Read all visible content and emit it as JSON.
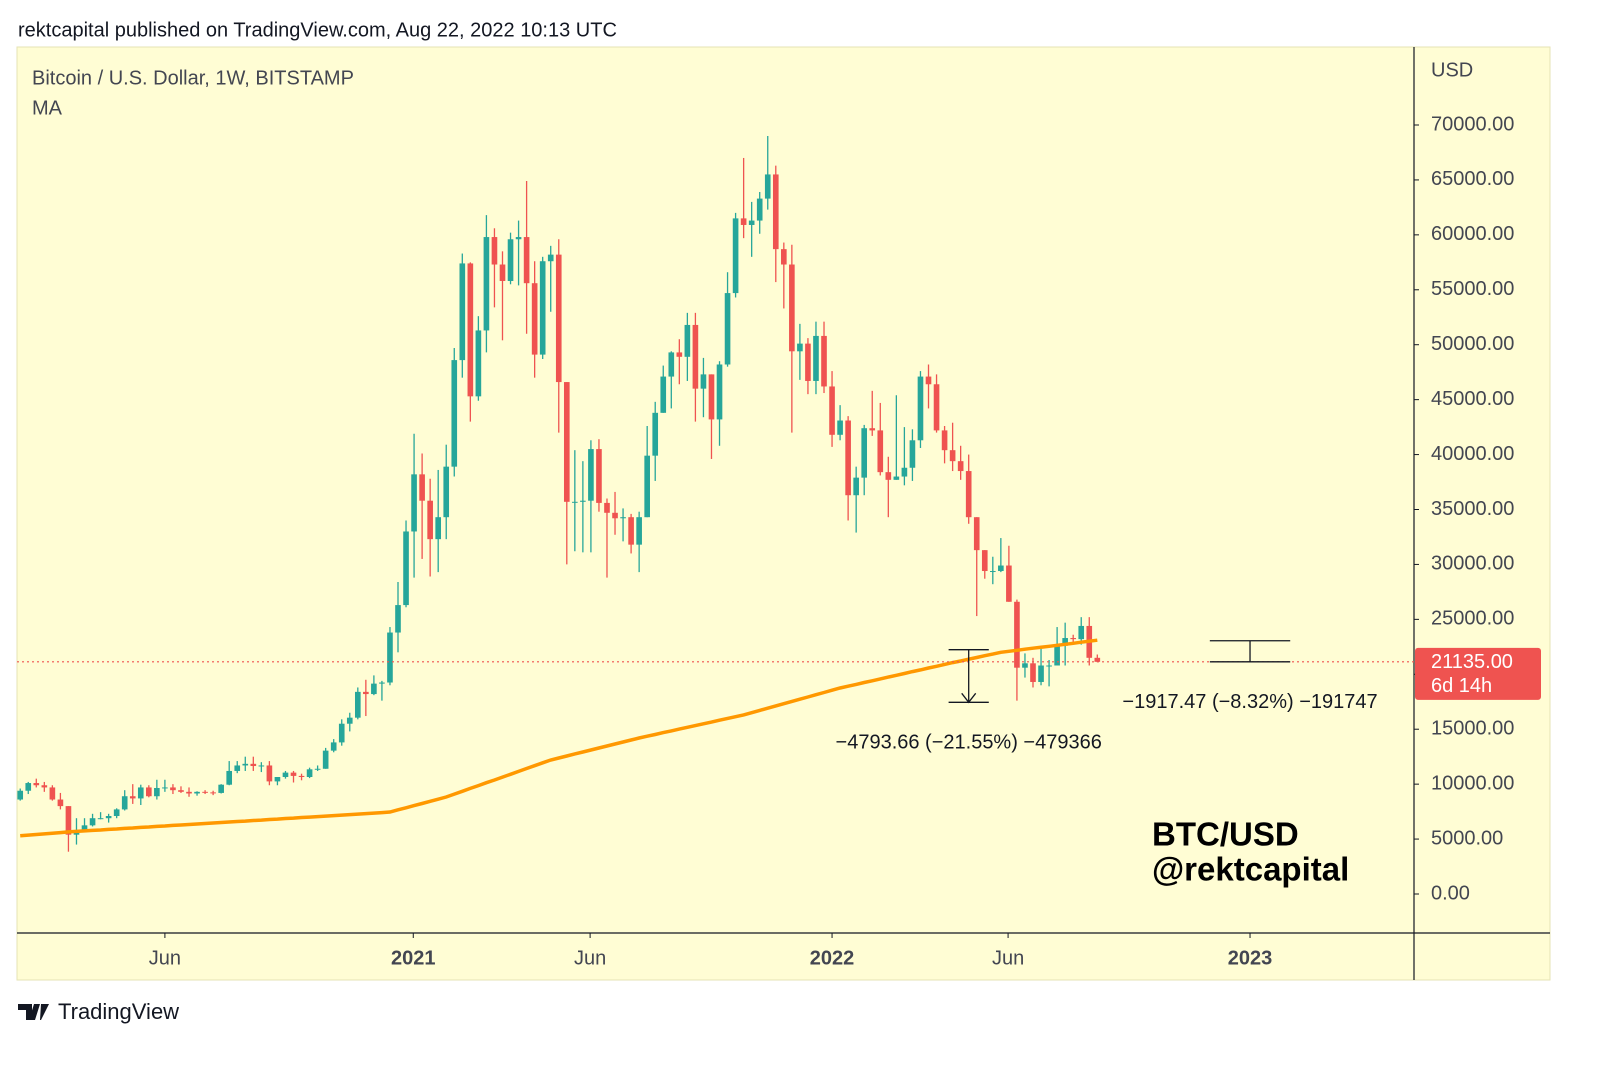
{
  "header": "rektcapital published on TradingView.com, Aug 22, 2022 10:13 UTC",
  "footer": "TradingView",
  "chart_data": {
    "type": "candlestick",
    "title": "Bitcoin / U.S. Dollar, 1W, BITSTAMP",
    "y_axis_label": "USD",
    "watermark": [
      "BTC/USD",
      "@rektcapital"
    ],
    "up_color": "#26a69a",
    "down_color": "#ef5350",
    "open": [
      8600,
      9400,
      10100,
      9900,
      9700,
      8600,
      8000,
      5400,
      5800,
      6250,
      6900,
      6900,
      7100,
      7700,
      8900,
      8700,
      9700,
      8900,
      9650,
      9700,
      9450,
      9300,
      9150,
      9300,
      9250,
      9200,
      9950,
      11200,
      11700,
      11850,
      11650,
      11700,
      10250,
      10650,
      11050,
      10750,
      10650,
      11350,
      11400,
      13050,
      13800,
      15500,
      16050,
      18400,
      18200,
      19150,
      19250,
      23800,
      26300,
      33000,
      38200,
      35800,
      32300,
      34300,
      38900,
      48600,
      57400,
      45300,
      51300,
      59800,
      57300,
      55800,
      59600,
      59800,
      55600,
      49100,
      57600,
      58200,
      46600,
      35700,
      35700,
      35800,
      40500,
      35600,
      34700,
      34200,
      34300,
      31800,
      34300,
      39900,
      43800,
      47100,
      49300,
      48900,
      51800,
      46000,
      47300,
      43200,
      48200,
      54700,
      61500,
      60900,
      61300,
      63300,
      65500,
      58700,
      57300,
      49400,
      50100,
      46700,
      50800,
      46200,
      41800,
      43100,
      36300,
      37900,
      42400,
      42200,
      38400,
      37700,
      38000,
      38800,
      41300,
      47100,
      46400,
      42200,
      40400,
      39400,
      38500,
      34300,
      31300,
      29400,
      29400,
      29900,
      26600,
      20600,
      21000,
      19300,
      20800,
      20800,
      22600,
      23300,
      23200,
      24400,
      21500
    ],
    "high": [
      9600,
      10200,
      10500,
      10200,
      9900,
      9200,
      8000,
      6900,
      6900,
      7300,
      7450,
      7300,
      7800,
      9450,
      10000,
      9950,
      9900,
      10400,
      10400,
      10000,
      9800,
      9700,
      9350,
      9450,
      9400,
      10000,
      12100,
      12100,
      12500,
      12500,
      12000,
      12100,
      10600,
      11200,
      11200,
      10950,
      11500,
      11700,
      13300,
      14100,
      15900,
      16500,
      18800,
      19500,
      19900,
      19400,
      24300,
      28400,
      34000,
      41900,
      40100,
      37800,
      38600,
      40900,
      49700,
      58300,
      57500,
      52600,
      61800,
      60600,
      58500,
      60200,
      61300,
      64900,
      57600,
      58000,
      59000,
      59600,
      46600,
      40400,
      39400,
      41300,
      41400,
      36000,
      36600,
      35100,
      34600,
      34800,
      42600,
      44800,
      48100,
      49400,
      50500,
      52900,
      52900,
      48800,
      47300,
      48500,
      56600,
      62000,
      67000,
      63000,
      63900,
      69000,
      66300,
      59300,
      59100,
      51900,
      50600,
      52100,
      52100,
      47600,
      44500,
      43500,
      38900,
      42700,
      45800,
      44700,
      39800,
      45400,
      42500,
      42300,
      47600,
      48200,
      47300,
      42600,
      42900,
      40800,
      40000,
      34300,
      31300,
      30700,
      32400,
      31700,
      26800,
      21900,
      21500,
      22500,
      21300,
      24300,
      24700,
      23600,
      25200,
      25200,
      21800
    ],
    "low": [
      8500,
      9100,
      9700,
      9300,
      8500,
      7700,
      3850,
      4500,
      5700,
      6150,
      6800,
      6500,
      6900,
      7600,
      8200,
      8100,
      8800,
      8600,
      9300,
      9100,
      9200,
      8850,
      8950,
      9100,
      9000,
      9150,
      9900,
      11000,
      11200,
      11200,
      11100,
      9900,
      9900,
      10500,
      10150,
      10350,
      10550,
      11200,
      11400,
      12900,
      13500,
      14800,
      15900,
      16200,
      18100,
      17600,
      19000,
      22000,
      26100,
      28800,
      30500,
      28900,
      29300,
      32300,
      38000,
      47000,
      43000,
      44900,
      49300,
      53400,
      50400,
      55500,
      55400,
      51000,
      47000,
      48700,
      53000,
      42000,
      30000,
      31200,
      31100,
      31100,
      34800,
      28800,
      32700,
      32100,
      31000,
      29300,
      34300,
      37600,
      43800,
      44200,
      46400,
      46700,
      43000,
      43400,
      39600,
      40800,
      48000,
      54300,
      59700,
      58000,
      60100,
      62300,
      55700,
      53300,
      42000,
      46800,
      45500,
      45500,
      45600,
      40700,
      41300,
      34000,
      32900,
      36300,
      41700,
      38100,
      34300,
      37700,
      37200,
      37600,
      40600,
      44200,
      42000,
      39200,
      38500,
      37700,
      33700,
      25300,
      28700,
      28200,
      29300,
      26600,
      17600,
      19700,
      18800,
      19000,
      18900,
      20800,
      20800,
      22700,
      22700,
      20800,
      21100
    ],
    "close": [
      9400,
      10100,
      9900,
      9700,
      8600,
      8000,
      5400,
      5800,
      6250,
      6900,
      6900,
      7100,
      7700,
      8900,
      8700,
      9700,
      8900,
      9650,
      9700,
      9450,
      9300,
      9150,
      9300,
      9250,
      9200,
      9950,
      11200,
      11700,
      11850,
      11650,
      11700,
      10250,
      10650,
      11050,
      10750,
      10650,
      11350,
      11400,
      13050,
      13800,
      15500,
      16050,
      18400,
      18200,
      19150,
      19250,
      23800,
      26300,
      33000,
      38200,
      35800,
      32300,
      34300,
      38900,
      48600,
      57400,
      45300,
      51300,
      59800,
      57300,
      55800,
      59600,
      59800,
      55600,
      49100,
      57600,
      58200,
      46600,
      35700,
      35700,
      35800,
      40500,
      35600,
      34700,
      34200,
      34300,
      31800,
      34300,
      39900,
      43800,
      47100,
      49300,
      48900,
      51800,
      46000,
      47300,
      43200,
      48200,
      54700,
      61500,
      60900,
      61300,
      63300,
      65500,
      58700,
      57300,
      49400,
      50100,
      46700,
      50800,
      46200,
      41800,
      43100,
      36300,
      37900,
      42400,
      42200,
      38400,
      37700,
      38000,
      38800,
      41300,
      47100,
      46400,
      42200,
      40400,
      39400,
      38500,
      34300,
      31300,
      29400,
      29400,
      29900,
      26600,
      20600,
      21000,
      19300,
      20800,
      20800,
      22600,
      23300,
      23200,
      24400,
      21500,
      21135
    ],
    "ma": {
      "name": "MA",
      "color": "#ff9800",
      "values": [
        5300,
        5360,
        5420,
        5470,
        5530,
        5590,
        5650,
        5700,
        5740,
        5790,
        5830,
        5880,
        5920,
        5970,
        6010,
        6060,
        6100,
        6150,
        6190,
        6240,
        6280,
        6330,
        6370,
        6420,
        6460,
        6510,
        6550,
        6600,
        6640,
        6690,
        6730,
        6780,
        6820,
        6870,
        6910,
        6960,
        7000,
        7050,
        7090,
        7140,
        7180,
        7230,
        7270,
        7320,
        7360,
        7410,
        7460,
        7660,
        7850,
        8050,
        8240,
        8440,
        8630,
        8830,
        9090,
        9350,
        9610,
        9870,
        10130,
        10380,
        10640,
        10900,
        11160,
        11420,
        11680,
        11940,
        12200,
        12380,
        12560,
        12750,
        12930,
        13110,
        13290,
        13470,
        13650,
        13840,
        14020,
        14200,
        14360,
        14520,
        14690,
        14850,
        15010,
        15170,
        15330,
        15490,
        15650,
        15820,
        15980,
        16140,
        16300,
        16500,
        16710,
        16910,
        17120,
        17320,
        17530,
        17730,
        17930,
        18140,
        18340,
        18550,
        18750,
        18920,
        19080,
        19250,
        19410,
        19580,
        19740,
        19910,
        20070,
        20240,
        20400,
        20570,
        20730,
        20900,
        21060,
        21210,
        21370,
        21530,
        21690,
        21840,
        22000,
        22090,
        22180,
        22280,
        22370,
        22460,
        22550,
        22640,
        22730,
        22820,
        22920,
        23010,
        23100
      ]
    },
    "ylim": [
      -3550,
      77100
    ],
    "yticks": [
      {
        "value": 0,
        "label": "0.00"
      },
      {
        "value": 5000,
        "label": "5000.00"
      },
      {
        "value": 10000,
        "label": "10000.00"
      },
      {
        "value": 15000,
        "label": "15000.00"
      },
      {
        "value": 20000,
        "label": "20000.00"
      },
      {
        "value": 25000,
        "label": "25000.00"
      },
      {
        "value": 30000,
        "label": "30000.00"
      },
      {
        "value": 35000,
        "label": "35000.00"
      },
      {
        "value": 40000,
        "label": "40000.00"
      },
      {
        "value": 45000,
        "label": "45000.00"
      },
      {
        "value": 50000,
        "label": "50000.00"
      },
      {
        "value": 55000,
        "label": "55000.00"
      },
      {
        "value": 60000,
        "label": "60000.00"
      },
      {
        "value": 65000,
        "label": "65000.00"
      },
      {
        "value": 70000,
        "label": "70000.00"
      }
    ],
    "xlim": [
      -0.4,
      173.4
    ],
    "xticks": [
      {
        "value": 18,
        "label": "Jun"
      },
      {
        "value": 48.9,
        "label": "2021"
      },
      {
        "value": 70.9,
        "label": "Jun"
      },
      {
        "value": 101,
        "label": "2022"
      },
      {
        "value": 122.9,
        "label": "Jun"
      },
      {
        "value": 153,
        "label": "2023"
      }
    ],
    "last_price": {
      "value": 21135,
      "label": "21135.00",
      "countdown": "6d 14h",
      "color": "#ef5350"
    },
    "annotations": [
      {
        "text": "−4793.66 (−21.55%) −479366",
        "from": 22240,
        "to": 17450,
        "x": [
          115.5,
          120.5
        ]
      },
      {
        "text": "−1917.47 (−8.32%) −191747",
        "from": 23050,
        "to": 21135,
        "x": [
          148,
          158
        ]
      }
    ]
  }
}
